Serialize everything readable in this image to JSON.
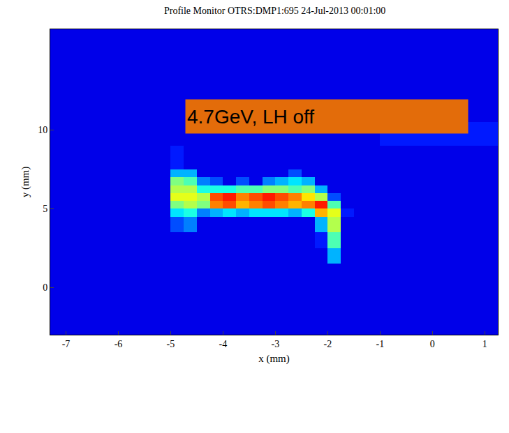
{
  "chart_data": {
    "type": "heatmap",
    "title": "Profile Monitor OTRS:DMP1:695 24-Jul-2013 00:01:00",
    "x_label": "x (mm)",
    "y_label": "y (mm)",
    "annotations": [
      "4.7GeV, LH off"
    ],
    "xlim": [
      -7.3,
      1.25
    ],
    "ylim": [
      -3,
      16.4
    ],
    "xticks": [
      -7,
      -6,
      -5,
      -4,
      -3,
      -2,
      -1,
      0,
      1
    ],
    "yticks": [
      0,
      5,
      10
    ],
    "x": [
      -7.3,
      -5,
      -4.75,
      -4.5,
      -4.25,
      -4,
      -3.75,
      -3.5,
      -3.25,
      -3,
      -2.75,
      -2.5,
      -2.25,
      -2,
      -1.75,
      -1.5,
      -1,
      1.25
    ],
    "y": [
      -3,
      1.5,
      2.5,
      3.5,
      4.5,
      5,
      5.5,
      6,
      6.5,
      7,
      7.5,
      9,
      10.5,
      16.4
    ],
    "zlim": [
      0,
      1
    ],
    "z": [
      [
        0.1,
        0.1,
        0.1,
        0.1,
        0.1,
        0.1,
        0.1,
        0.1,
        0.1,
        0.1,
        0.1,
        0.1,
        0.1,
        0.1,
        0.1,
        0.1,
        0.1
      ],
      [
        0.1,
        0.1,
        0.1,
        0.1,
        0.1,
        0.1,
        0.1,
        0.1,
        0.1,
        0.1,
        0.1,
        0.1,
        0.1,
        0.3,
        0.1,
        0.1,
        0.1
      ],
      [
        0.1,
        0.1,
        0.1,
        0.1,
        0.1,
        0.1,
        0.1,
        0.1,
        0.1,
        0.1,
        0.1,
        0.1,
        0.15,
        0.45,
        0.1,
        0.1,
        0.1
      ],
      [
        0.1,
        0.2,
        0.25,
        0.1,
        0.1,
        0.1,
        0.1,
        0.1,
        0.1,
        0.1,
        0.1,
        0.1,
        0.3,
        0.55,
        0.1,
        0.1,
        0.1
      ],
      [
        0.1,
        0.35,
        0.4,
        0.25,
        0.3,
        0.35,
        0.3,
        0.35,
        0.35,
        0.35,
        0.3,
        0.4,
        0.7,
        0.6,
        0.15,
        0.1,
        0.1
      ],
      [
        0.1,
        0.5,
        0.55,
        0.5,
        0.75,
        0.8,
        0.7,
        0.75,
        0.8,
        0.75,
        0.7,
        0.75,
        0.85,
        0.45,
        0.1,
        0.1,
        0.1
      ],
      [
        0.1,
        0.6,
        0.6,
        0.55,
        0.8,
        0.85,
        0.75,
        0.8,
        0.85,
        0.8,
        0.75,
        0.65,
        0.55,
        0.2,
        0.1,
        0.1,
        0.1
      ],
      [
        0.1,
        0.55,
        0.55,
        0.4,
        0.4,
        0.4,
        0.45,
        0.45,
        0.5,
        0.5,
        0.45,
        0.5,
        0.3,
        0.1,
        0.1,
        0.1,
        0.1
      ],
      [
        0.1,
        0.5,
        0.45,
        0.25,
        0.2,
        0.1,
        0.2,
        0.1,
        0.25,
        0.3,
        0.35,
        0.3,
        0.1,
        0.1,
        0.1,
        0.1,
        0.1
      ],
      [
        0.1,
        0.3,
        0.3,
        0.1,
        0.1,
        0.1,
        0.1,
        0.1,
        0.1,
        0.1,
        0.2,
        0.1,
        0.1,
        0.1,
        0.1,
        0.1,
        0.1
      ],
      [
        0.1,
        0.15,
        0.1,
        0.1,
        0.1,
        0.1,
        0.1,
        0.1,
        0.1,
        0.1,
        0.1,
        0.1,
        0.1,
        0.1,
        0.1,
        0.1,
        0.1
      ],
      [
        0.1,
        0.1,
        0.1,
        0.1,
        0.1,
        0.1,
        0.1,
        0.1,
        0.1,
        0.1,
        0.1,
        0.1,
        0.1,
        0.1,
        0.1,
        0.1,
        0.15
      ],
      [
        0.1,
        0.1,
        0.1,
        0.1,
        0.1,
        0.1,
        0.1,
        0.1,
        0.1,
        0.1,
        0.1,
        0.1,
        0.1,
        0.1,
        0.1,
        0.1,
        0.1
      ]
    ]
  }
}
